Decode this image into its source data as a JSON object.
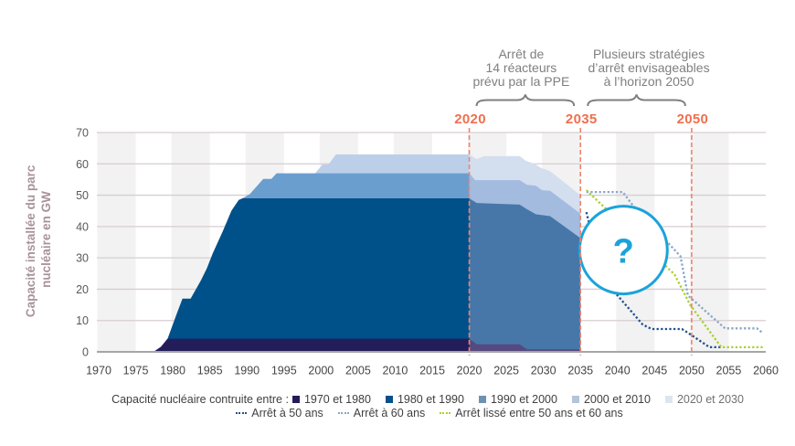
{
  "chart_data": {
    "type": "area",
    "title": "",
    "xlabel": "",
    "ylabel": "Capacité installée du parc nucléaire en GW",
    "ylabel_lines": [
      "Capacité installée du parc",
      "nucléaire en GW"
    ],
    "xlim": [
      1970,
      2060
    ],
    "ylim": [
      0,
      70
    ],
    "x_ticks": [
      1970,
      1975,
      1980,
      1985,
      1990,
      1995,
      2000,
      2005,
      2010,
      2015,
      2020,
      2025,
      2030,
      2035,
      2040,
      2045,
      2050,
      2055,
      2060
    ],
    "y_ticks": [
      0,
      10,
      20,
      30,
      40,
      50,
      60,
      70
    ],
    "grid": true,
    "stacked": true,
    "stacked_series": [
      {
        "name": "1970 et 1980",
        "color": "#231d5a",
        "projection_color": "#56497f",
        "top_historical": [
          [
            1970,
            0
          ],
          [
            1977.4,
            0
          ],
          [
            1978.4,
            1.6
          ],
          [
            1979.3,
            4.2
          ],
          [
            2020,
            4.2
          ]
        ],
        "top_projection": [
          [
            2020,
            4.2
          ],
          [
            2021,
            2.4
          ],
          [
            2026.8,
            2.4
          ],
          [
            2027.8,
            0.8
          ],
          [
            2035,
            0.8
          ]
        ]
      },
      {
        "name": "1980 et 1990",
        "color": "#00508a",
        "projection_color": "#4777a8",
        "top_historical": [
          [
            1970,
            0
          ],
          [
            1977.4,
            0
          ],
          [
            1978.4,
            1.6
          ],
          [
            1979.3,
            4.2
          ],
          [
            1980.5,
            12
          ],
          [
            1981.3,
            17
          ],
          [
            1982.4,
            17
          ],
          [
            1983.8,
            22.8
          ],
          [
            1984.6,
            26.7
          ],
          [
            1985.4,
            31.5
          ],
          [
            1986.7,
            38.3
          ],
          [
            1987.9,
            45
          ],
          [
            1988.9,
            48.5
          ],
          [
            1989.4,
            49
          ],
          [
            2020,
            49
          ]
        ],
        "top_projection": [
          [
            2020,
            49
          ],
          [
            2021,
            47.5
          ],
          [
            2026.8,
            47
          ],
          [
            2027.8,
            45.5
          ],
          [
            2029,
            43.9
          ],
          [
            2030.9,
            43.3
          ],
          [
            2035,
            36.3
          ]
        ]
      },
      {
        "name": "1990 et 2000",
        "color": "#6a9ecf",
        "projection_color": "#a2bbdf",
        "top_historical": [
          [
            1989.4,
            49
          ],
          [
            1990.4,
            50.4
          ],
          [
            1992.2,
            55.2
          ],
          [
            1993.3,
            55.2
          ],
          [
            1994,
            57
          ],
          [
            2020,
            57
          ]
        ],
        "top_projection": [
          [
            2020,
            57
          ],
          [
            2020.8,
            54.8
          ],
          [
            2026.8,
            54.8
          ],
          [
            2027.8,
            53.3
          ],
          [
            2029,
            53
          ],
          [
            2029.8,
            51.6
          ],
          [
            2030.9,
            51.4
          ],
          [
            2035,
            44.1
          ]
        ]
      },
      {
        "name": "2000 et 2010",
        "color": "#bbcfe9",
        "projection_color": "#d3deef",
        "top_historical": [
          [
            1999.2,
            57
          ],
          [
            2000.2,
            59.8
          ],
          [
            2001,
            59.8
          ],
          [
            2002,
            63
          ],
          [
            2020,
            63
          ]
        ],
        "top_projection": [
          [
            2020,
            63
          ],
          [
            2021,
            61.5
          ],
          [
            2022,
            62.5
          ],
          [
            2026.8,
            62.5
          ],
          [
            2027.6,
            61
          ],
          [
            2028.8,
            60
          ],
          [
            2029.8,
            58.6
          ],
          [
            2030.9,
            57.7
          ],
          [
            2035,
            50
          ]
        ]
      }
    ],
    "scenario_lines": [
      {
        "name": "Arrêt à 50 ans",
        "color": "#23508e",
        "points": [
          [
            2035.8,
            44.6
          ],
          [
            2036.6,
            36.8
          ],
          [
            2039.5,
            19.4
          ],
          [
            2043.4,
            8.7
          ],
          [
            2044.6,
            7.3
          ],
          [
            2048.7,
            7.3
          ],
          [
            2050,
            5.3
          ],
          [
            2052.4,
            1.5
          ],
          [
            2054,
            1.5
          ]
        ]
      },
      {
        "name": "Arrêt à 60 ans",
        "color": "#8aa8c8",
        "points": [
          [
            2035.8,
            51
          ],
          [
            2040.7,
            51
          ],
          [
            2042,
            47
          ],
          [
            2048.5,
            30.5
          ],
          [
            2049.5,
            18
          ],
          [
            2054.5,
            7.5
          ],
          [
            2058.8,
            7.5
          ],
          [
            2059.6,
            6
          ]
        ]
      },
      {
        "name": "Arrêt lissé entre 50 ans et 60 ans",
        "color": "#a9d12e",
        "points": [
          [
            2035.8,
            51.6
          ],
          [
            2038.9,
            44.6
          ],
          [
            2047.7,
            24.7
          ],
          [
            2049.8,
            15
          ],
          [
            2054,
            1.5
          ],
          [
            2059.6,
            1.5
          ]
        ]
      }
    ],
    "markers": [
      {
        "year": 2020,
        "label": "2020"
      },
      {
        "year": 2035,
        "label": "2035"
      },
      {
        "year": 2050,
        "label": "2050"
      }
    ],
    "period_annotations": [
      {
        "from": 2020,
        "to": 2035,
        "lines": [
          "Arrêt de",
          "14 réacteurs",
          "prévu par la PPE"
        ]
      },
      {
        "from": 2035,
        "to": 2050,
        "lines": [
          "Plusieurs stratégies",
          "d’arrêt envisageables",
          "à l’horizon 2050"
        ]
      }
    ],
    "question_annotation": {
      "text": "?",
      "at": [
        2040.8,
        32.5
      ],
      "color": "#1ba3da"
    },
    "legend": {
      "placement": "bottom",
      "title": "Capacité nucléaire contruite entre :",
      "capacity_items": [
        {
          "label": "1970 et 1980",
          "color": "#221c5b"
        },
        {
          "label": "1980 et 1990",
          "color": "#03518c"
        },
        {
          "label": "1990 et 2000",
          "color": "#6d91b2"
        },
        {
          "label": "2000 et 2010",
          "color": "#b3c5d9"
        },
        {
          "label": "2020 et 2030",
          "color": "#dde5f0"
        }
      ],
      "scenario_items": [
        {
          "label": "Arrêt à 50 ans",
          "color": "#23508e"
        },
        {
          "label": "Arrêt à 60 ans",
          "color": "#8aa8c8"
        },
        {
          "label": "Arrêt lissé entre 50 ans et 60 ans",
          "color": "#a9d12e"
        }
      ]
    }
  }
}
